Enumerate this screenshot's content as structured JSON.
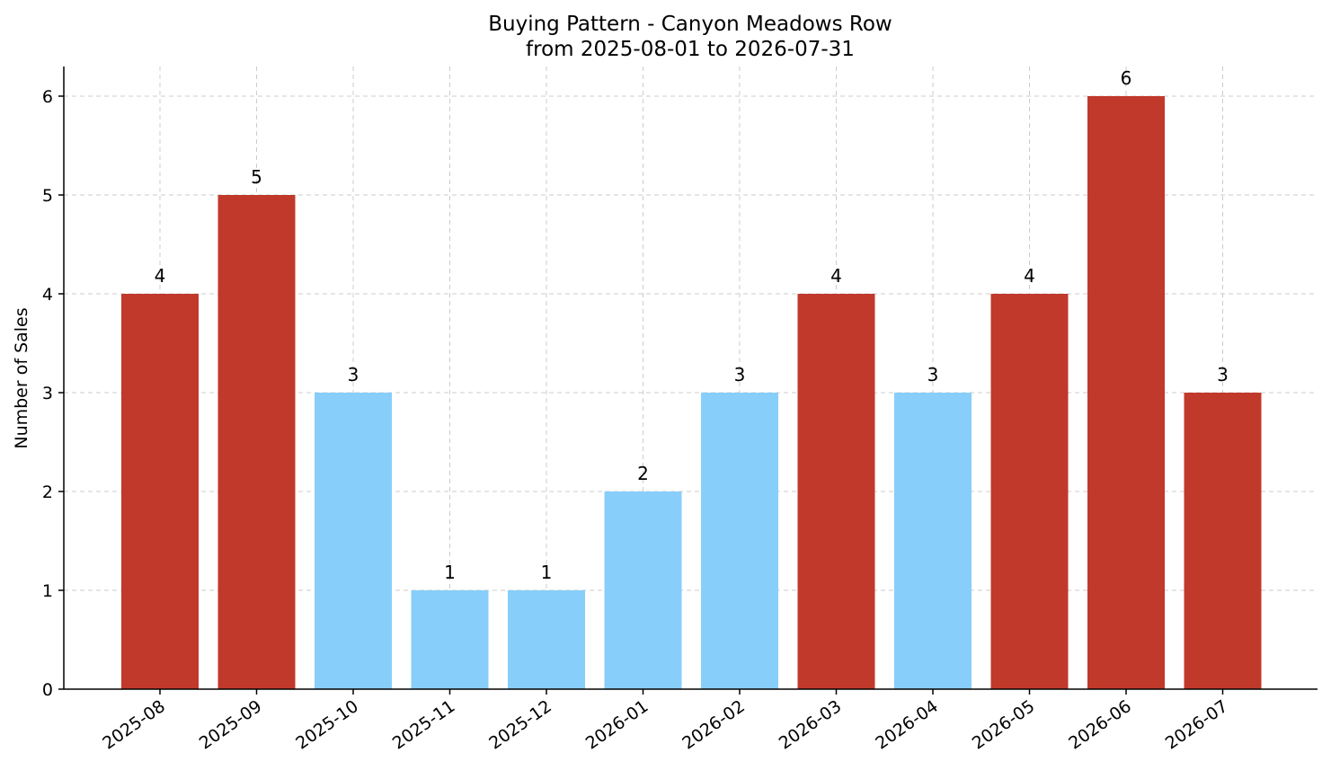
{
  "chart_data": {
    "type": "bar",
    "title": "Buying Pattern - Canyon Meadows Row",
    "subtitle": "from 2025-08-01 to 2026-07-31",
    "xlabel": "",
    "ylabel": "Number of Sales",
    "ylim": [
      0,
      6.3
    ],
    "yticks": [
      0,
      1,
      2,
      3,
      4,
      5,
      6
    ],
    "grid": true,
    "legend": "none",
    "categories": [
      "2025-08",
      "2025-09",
      "2025-10",
      "2025-11",
      "2025-12",
      "2026-01",
      "2026-02",
      "2026-03",
      "2026-04",
      "2026-05",
      "2026-06",
      "2026-07"
    ],
    "values": [
      4,
      5,
      3,
      1,
      1,
      2,
      3,
      4,
      3,
      4,
      6,
      3
    ],
    "bar_colors": [
      "#c0392b",
      "#c0392b",
      "#87cefa",
      "#87cefa",
      "#87cefa",
      "#87cefa",
      "#87cefa",
      "#c0392b",
      "#87cefa",
      "#c0392b",
      "#c0392b",
      "#c0392b"
    ],
    "colors": {
      "high": "#c0392b",
      "low": "#87cefa"
    }
  }
}
